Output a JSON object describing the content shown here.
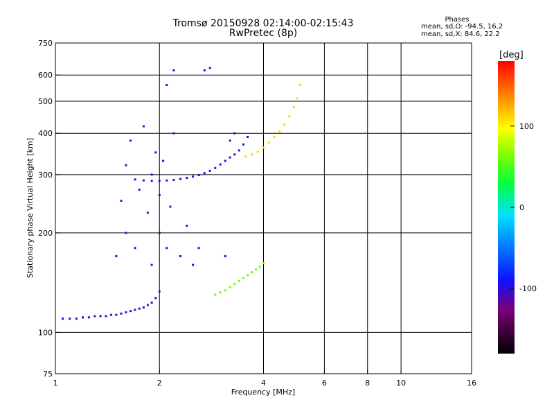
{
  "title": "Tromsø 20150928 02:14:00-02:15:43",
  "subtitle": "RwPretec (8p)",
  "phases": {
    "heading": "Phases",
    "line1": "mean, sd,O:  -94.5, 16.2",
    "line2": "mean, sd,X:  84.6, 22.2"
  },
  "chart_data": {
    "type": "scatter",
    "title": "Tromsø 20150928 02:14:00-02:15:43",
    "subtitle": "RwPretec (8p)",
    "xlabel": "Frequency [MHz]",
    "ylabel": "Stationary phase Virtual Height [km]",
    "x_scale": "log",
    "y_scale": "log",
    "xlim": [
      1,
      16
    ],
    "ylim": [
      75,
      750
    ],
    "x_ticks": [
      {
        "v": 1,
        "label": "1"
      },
      {
        "v": 2,
        "label": "2"
      },
      {
        "v": 4,
        "label": "4"
      },
      {
        "v": 6,
        "label": "6"
      },
      {
        "v": 8,
        "label": "8"
      },
      {
        "v": 10,
        "label": "10"
      },
      {
        "v": 16,
        "label": "16"
      }
    ],
    "y_ticks": [
      {
        "v": 75,
        "label": "75"
      },
      {
        "v": 100,
        "label": "100"
      },
      {
        "v": 200,
        "label": "200"
      },
      {
        "v": 300,
        "label": "300"
      },
      {
        "v": 400,
        "label": "400"
      },
      {
        "v": 500,
        "label": "500"
      },
      {
        "v": 600,
        "label": "600"
      },
      {
        "v": 750,
        "label": "750"
      }
    ],
    "grid_x": [
      2,
      4,
      6,
      8,
      10
    ],
    "grid_y": [
      100,
      200,
      300,
      400,
      500,
      600
    ],
    "colorbar": {
      "label": "[deg]",
      "range": [
        -180,
        180
      ],
      "ticks": [
        {
          "v": 100,
          "label": "100"
        },
        {
          "v": 0,
          "label": "0"
        },
        {
          "v": -100,
          "label": "-100"
        }
      ]
    },
    "series": [
      {
        "trace": "O-mode E/F1 low trace",
        "phase_deg": -100,
        "points": [
          [
            1.05,
            110
          ],
          [
            1.1,
            110
          ],
          [
            1.15,
            110
          ],
          [
            1.2,
            111
          ],
          [
            1.25,
            111
          ],
          [
            1.3,
            112
          ],
          [
            1.35,
            112
          ],
          [
            1.4,
            112
          ],
          [
            1.45,
            113
          ],
          [
            1.5,
            113
          ],
          [
            1.55,
            114
          ],
          [
            1.6,
            115
          ],
          [
            1.65,
            116
          ],
          [
            1.7,
            117
          ],
          [
            1.75,
            118
          ],
          [
            1.8,
            119
          ],
          [
            1.85,
            121
          ],
          [
            1.9,
            123
          ],
          [
            1.95,
            127
          ],
          [
            2.0,
            133
          ]
        ]
      },
      {
        "trace": "O-mode F2 trace",
        "phase_deg": -95,
        "points": [
          [
            1.7,
            290
          ],
          [
            1.8,
            288
          ],
          [
            1.9,
            287
          ],
          [
            2.0,
            287
          ],
          [
            2.1,
            288
          ],
          [
            2.2,
            289
          ],
          [
            2.3,
            291
          ],
          [
            2.4,
            293
          ],
          [
            2.5,
            296
          ],
          [
            2.6,
            299
          ],
          [
            2.7,
            303
          ],
          [
            2.8,
            308
          ],
          [
            2.9,
            314
          ],
          [
            3.0,
            322
          ],
          [
            3.1,
            330
          ],
          [
            3.2,
            338
          ],
          [
            3.3,
            345
          ],
          [
            3.4,
            355
          ],
          [
            3.5,
            370
          ],
          [
            3.6,
            390
          ]
        ]
      },
      {
        "trace": "O-mode spread F cloud",
        "phase_deg": -105,
        "points": [
          [
            1.5,
            170
          ],
          [
            1.55,
            250
          ],
          [
            1.6,
            320
          ],
          [
            1.6,
            200
          ],
          [
            1.65,
            380
          ],
          [
            1.7,
            180
          ],
          [
            1.75,
            270
          ],
          [
            1.8,
            420
          ],
          [
            1.85,
            230
          ],
          [
            1.9,
            300
          ],
          [
            1.9,
            160
          ],
          [
            1.95,
            350
          ],
          [
            2.0,
            200
          ],
          [
            2.0,
            260
          ],
          [
            2.05,
            330
          ],
          [
            2.1,
            180
          ],
          [
            2.1,
            560
          ],
          [
            2.15,
            240
          ],
          [
            2.2,
            620
          ],
          [
            2.2,
            400
          ],
          [
            2.3,
            170
          ],
          [
            2.4,
            210
          ],
          [
            2.5,
            160
          ],
          [
            2.6,
            180
          ],
          [
            2.7,
            620
          ],
          [
            2.8,
            630
          ],
          [
            3.1,
            170
          ],
          [
            3.2,
            380
          ],
          [
            3.3,
            400
          ]
        ]
      },
      {
        "trace": "X-mode F2 trace",
        "phase_deg": 110,
        "points": [
          [
            3.55,
            340
          ],
          [
            3.7,
            345
          ],
          [
            3.85,
            352
          ],
          [
            4.0,
            362
          ],
          [
            4.15,
            375
          ],
          [
            4.3,
            390
          ],
          [
            4.45,
            405
          ],
          [
            4.6,
            425
          ],
          [
            4.75,
            450
          ],
          [
            4.9,
            480
          ],
          [
            5.0,
            510
          ],
          [
            5.1,
            560
          ]
        ]
      },
      {
        "trace": "X-mode F1 trace",
        "phase_deg": 60,
        "points": [
          [
            2.9,
            130
          ],
          [
            3.0,
            132
          ],
          [
            3.1,
            134
          ],
          [
            3.2,
            137
          ],
          [
            3.3,
            140
          ],
          [
            3.4,
            143
          ],
          [
            3.5,
            146
          ],
          [
            3.6,
            149
          ],
          [
            3.7,
            152
          ],
          [
            3.8,
            155
          ],
          [
            3.9,
            158
          ],
          [
            4.0,
            162
          ]
        ]
      }
    ]
  }
}
